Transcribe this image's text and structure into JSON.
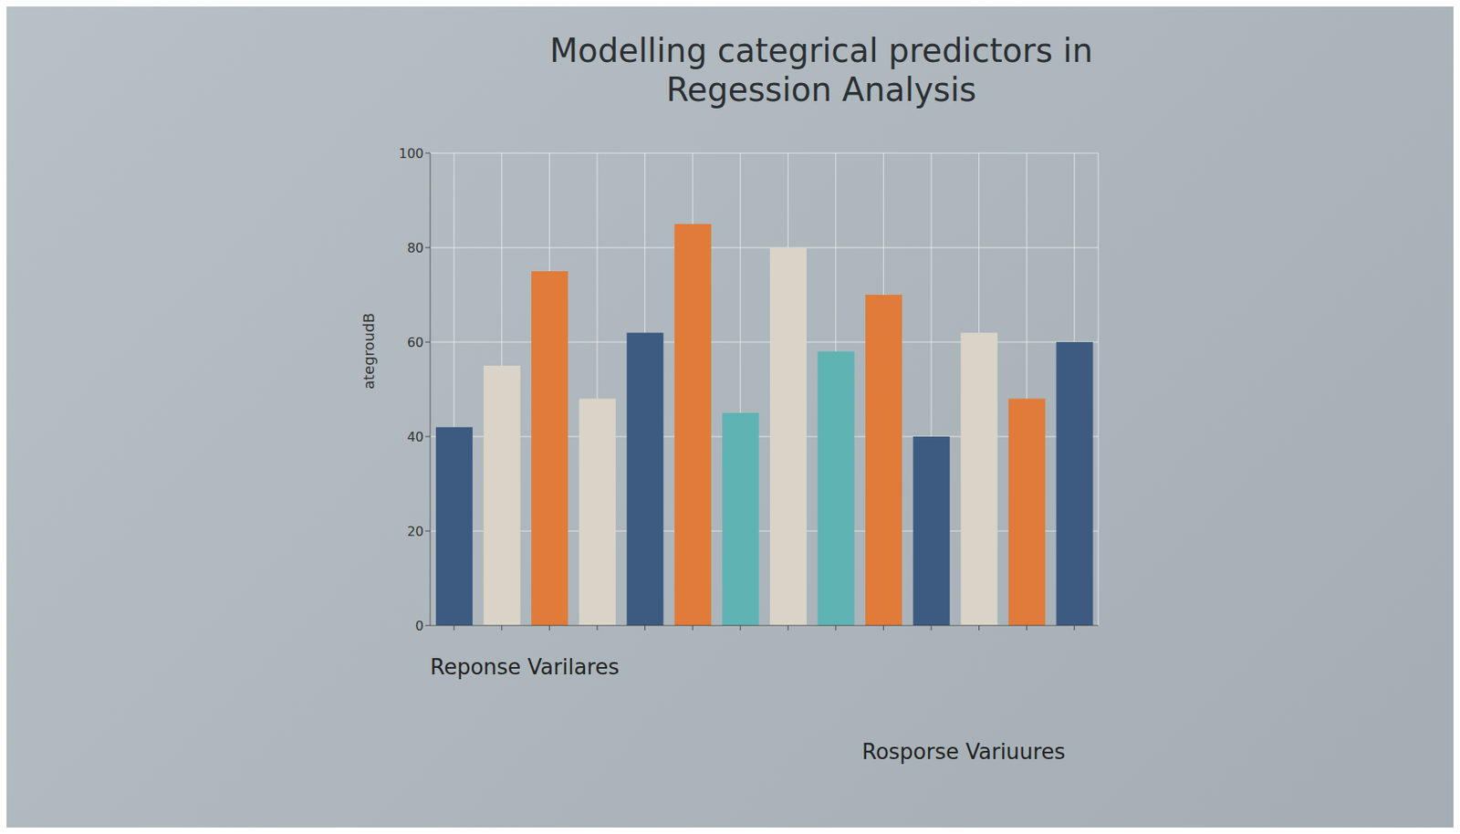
{
  "chart_data": {
    "type": "bar",
    "title": "Modelling categrical predictors in Regession Analysis",
    "xlabel": "Reponse Varilares",
    "xlabel2": "Rosporse Variuures",
    "ylabel": "ategroudB",
    "categories": [
      null,
      null,
      null,
      null,
      null,
      null,
      null,
      null,
      null,
      null,
      null,
      null,
      null,
      null
    ],
    "values": [
      42,
      55,
      75,
      48,
      62,
      85,
      45,
      80,
      58,
      70,
      40,
      62,
      48,
      60
    ],
    "colors": [
      "#3d5a80",
      "#d9d4c7",
      "#e07b39",
      "#d9d4c7",
      "#3d5a80",
      "#e07b39",
      "#5fb3b3",
      "#d9d4c7",
      "#5fb3b3",
      "#e07b39",
      "#3d5a80",
      "#d9d4c7",
      "#e07b39",
      "#3d5a80"
    ],
    "ylim": [
      0,
      100
    ],
    "yticks": [
      0,
      20,
      40,
      60,
      80,
      100
    ],
    "grid": true
  }
}
